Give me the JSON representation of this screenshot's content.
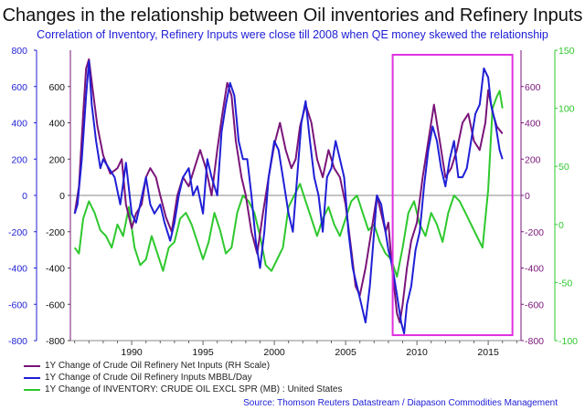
{
  "header": {
    "title": "Changes in the relationship between Oil inventories and Refinery Inputs",
    "subtitle": "Correlation of Inventory, Refinery Inputs were close till 2008 when QE money skewed the relationship"
  },
  "source": "Source: Thomson Reuters Datastream / Diapason Commodities Management",
  "colors": {
    "purple": "#7a157a",
    "blue": "#1f1fd6",
    "green": "#2ec82e",
    "highlight": "#e030e0"
  },
  "chart_data": {
    "type": "line",
    "x_range": [
      1985.7,
      2017.3
    ],
    "x_ticks": [
      "1990",
      "1995",
      "2000",
      "2005",
      "2010",
      "2015"
    ],
    "left_axis": {
      "range": [
        -800,
        800
      ],
      "ticks": [
        "800",
        "600",
        "400",
        "200",
        "0",
        "-200",
        "-400",
        "-600",
        "-800"
      ]
    },
    "inner_left_axis": {
      "range": [
        -800,
        800
      ],
      "ticks": [
        "600",
        "400",
        "200",
        "0",
        "-200",
        "-400",
        "-600",
        "-800"
      ]
    },
    "mid_right_axis": {
      "range": [
        -800,
        800
      ],
      "ticks": [
        "600",
        "400",
        "200",
        "0",
        "-200",
        "-400",
        "-600",
        "-800"
      ]
    },
    "right_axis": {
      "range": [
        -100,
        150
      ],
      "ticks": [
        "150",
        "100",
        "50",
        "0",
        "-50",
        "-100"
      ]
    },
    "highlight_box": {
      "x": [
        2008.3,
        2016.7
      ],
      "y": [
        -770,
        775
      ]
    },
    "grid": false,
    "legend_position": "bottom",
    "series": [
      {
        "name": "1Y Change of Crude Oil Refinery Net Inputs (RH Scale)",
        "axis": "mid_right",
        "color": "purple",
        "x": [
          1986.0,
          1986.3,
          1986.6,
          1986.8,
          1987.0,
          1987.3,
          1987.6,
          1988.0,
          1988.5,
          1989.0,
          1989.3,
          1989.6,
          1990.0,
          1990.3,
          1990.7,
          1991.0,
          1991.3,
          1991.7,
          1992.0,
          1992.4,
          1992.8,
          1993.2,
          1993.6,
          1994.0,
          1994.4,
          1994.8,
          1995.2,
          1995.6,
          1996.0,
          1996.3,
          1996.7,
          1997.0,
          1997.3,
          1997.7,
          1998.0,
          1998.4,
          1998.8,
          1999.2,
          1999.6,
          2000.0,
          2000.4,
          2000.8,
          2001.2,
          2001.5,
          2001.8,
          2002.2,
          2002.6,
          2003.0,
          2003.4,
          2003.8,
          2004.2,
          2004.6,
          2005.0,
          2005.4,
          2005.7,
          2006.0,
          2006.4,
          2006.8,
          2007.2,
          2007.5,
          2007.8,
          2008.0,
          2008.2,
          2008.4,
          2008.6,
          2008.8,
          2009.0,
          2009.3,
          2009.6,
          2010.0,
          2010.4,
          2010.8,
          2011.2,
          2011.6,
          2012.0,
          2012.4,
          2012.8,
          2013.2,
          2013.6,
          2014.0,
          2014.4,
          2014.8,
          2015.0,
          2015.3,
          2015.6,
          2016.0
        ],
        "y": [
          -100,
          50,
          450,
          700,
          750,
          560,
          380,
          220,
          120,
          150,
          200,
          -50,
          -180,
          -100,
          -50,
          100,
          150,
          100,
          0,
          -120,
          -200,
          0,
          100,
          50,
          150,
          250,
          150,
          0,
          250,
          420,
          620,
          550,
          300,
          100,
          0,
          -200,
          -320,
          -100,
          100,
          280,
          400,
          250,
          150,
          200,
          380,
          500,
          400,
          200,
          100,
          250,
          150,
          100,
          -50,
          -300,
          -500,
          -550,
          -400,
          -200,
          0,
          -100,
          -200,
          -150,
          -350,
          -500,
          -650,
          -700,
          -600,
          -400,
          -250,
          -150,
          100,
          300,
          500,
          300,
          100,
          150,
          250,
          400,
          450,
          300,
          250,
          400,
          580,
          460,
          380,
          340
        ]
      },
      {
        "name": "1Y Change of Crude Oil Refinery Inputs MBBL/Day",
        "axis": "left",
        "color": "blue",
        "x": [
          1986.0,
          1986.2,
          1986.5,
          1986.8,
          1987.0,
          1987.2,
          1987.5,
          1987.8,
          1988.0,
          1988.4,
          1988.8,
          1989.2,
          1989.6,
          1990.0,
          1990.3,
          1990.6,
          1991.0,
          1991.3,
          1991.6,
          1992.0,
          1992.3,
          1992.7,
          1993.0,
          1993.3,
          1993.6,
          1994.0,
          1994.3,
          1994.6,
          1995.0,
          1995.3,
          1995.6,
          1996.0,
          1996.3,
          1996.6,
          1996.9,
          1997.2,
          1997.5,
          1997.8,
          1998.1,
          1998.4,
          1998.7,
          1999.0,
          1999.3,
          1999.6,
          2000.0,
          2000.3,
          2000.6,
          2001.0,
          2001.3,
          2001.6,
          2001.9,
          2002.2,
          2002.5,
          2002.8,
          2003.1,
          2003.4,
          2003.7,
          2004.0,
          2004.3,
          2004.6,
          2004.9,
          2005.2,
          2005.5,
          2005.8,
          2006.1,
          2006.4,
          2006.7,
          2007.0,
          2007.2,
          2007.5,
          2007.8,
          2008.0,
          2008.3,
          2008.6,
          2008.9,
          2009.1,
          2009.3,
          2009.6,
          2009.9,
          2010.2,
          2010.5,
          2010.8,
          2011.1,
          2011.4,
          2011.7,
          2012.0,
          2012.3,
          2012.6,
          2012.9,
          2013.2,
          2013.5,
          2013.8,
          2014.1,
          2014.4,
          2014.7,
          2015.0,
          2015.2,
          2015.5,
          2015.8,
          2016.0
        ],
        "y": [
          -100,
          -50,
          200,
          550,
          740,
          500,
          300,
          150,
          200,
          150,
          100,
          -50,
          180,
          -100,
          -150,
          -50,
          100,
          -50,
          -100,
          -50,
          -150,
          -250,
          -150,
          0,
          100,
          150,
          0,
          50,
          -100,
          200,
          100,
          0,
          350,
          500,
          620,
          550,
          300,
          200,
          200,
          0,
          -250,
          -400,
          -200,
          100,
          300,
          250,
          100,
          -100,
          -200,
          100,
          400,
          520,
          300,
          100,
          0,
          -200,
          100,
          150,
          300,
          200,
          100,
          -200,
          -400,
          -500,
          -600,
          -700,
          -500,
          -200,
          0,
          -50,
          -200,
          -300,
          -400,
          -550,
          -700,
          -760,
          -600,
          -500,
          -300,
          -200,
          50,
          250,
          380,
          300,
          150,
          50,
          200,
          300,
          100,
          100,
          150,
          300,
          450,
          500,
          700,
          650,
          500,
          400,
          250,
          200
        ]
      },
      {
        "name": "1Y Change of INVENTORY: CRUDE OIL EXCL SPR (MB) : United States",
        "axis": "right",
        "color": "green",
        "x": [
          1986.0,
          1986.3,
          1986.6,
          1987.0,
          1987.4,
          1987.8,
          1988.2,
          1988.6,
          1989.0,
          1989.4,
          1989.8,
          1990.2,
          1990.6,
          1991.0,
          1991.4,
          1991.8,
          1992.2,
          1992.6,
          1993.0,
          1993.4,
          1993.8,
          1994.2,
          1994.6,
          1995.0,
          1995.4,
          1995.8,
          1996.2,
          1996.6,
          1997.0,
          1997.4,
          1997.8,
          1998.2,
          1998.6,
          1999.0,
          1999.4,
          1999.8,
          2000.2,
          2000.6,
          2001.0,
          2001.4,
          2001.8,
          2002.2,
          2002.6,
          2003.0,
          2003.4,
          2003.8,
          2004.2,
          2004.6,
          2005.0,
          2005.4,
          2005.8,
          2006.2,
          2006.6,
          2007.0,
          2007.4,
          2007.8,
          2008.2,
          2008.6,
          2009.0,
          2009.4,
          2009.8,
          2010.2,
          2010.6,
          2011.0,
          2011.4,
          2011.8,
          2012.2,
          2012.6,
          2013.0,
          2013.4,
          2013.8,
          2014.2,
          2014.6,
          2015.0,
          2015.3,
          2015.6,
          2015.8,
          2016.0
        ],
        "y": [
          -20,
          -25,
          5,
          20,
          10,
          -5,
          -10,
          -20,
          0,
          -10,
          15,
          -20,
          -35,
          -30,
          -10,
          -25,
          -40,
          -20,
          -15,
          5,
          10,
          0,
          -15,
          -30,
          -15,
          10,
          -5,
          -25,
          -20,
          10,
          25,
          20,
          10,
          -10,
          -35,
          -40,
          -30,
          -20,
          15,
          25,
          35,
          20,
          5,
          -10,
          5,
          15,
          0,
          -10,
          5,
          20,
          25,
          10,
          -5,
          0,
          -15,
          -25,
          -30,
          -45,
          -20,
          10,
          20,
          0,
          -10,
          10,
          0,
          -15,
          10,
          25,
          20,
          10,
          0,
          -10,
          -20,
          30,
          100,
          110,
          115,
          100
        ]
      }
    ]
  }
}
